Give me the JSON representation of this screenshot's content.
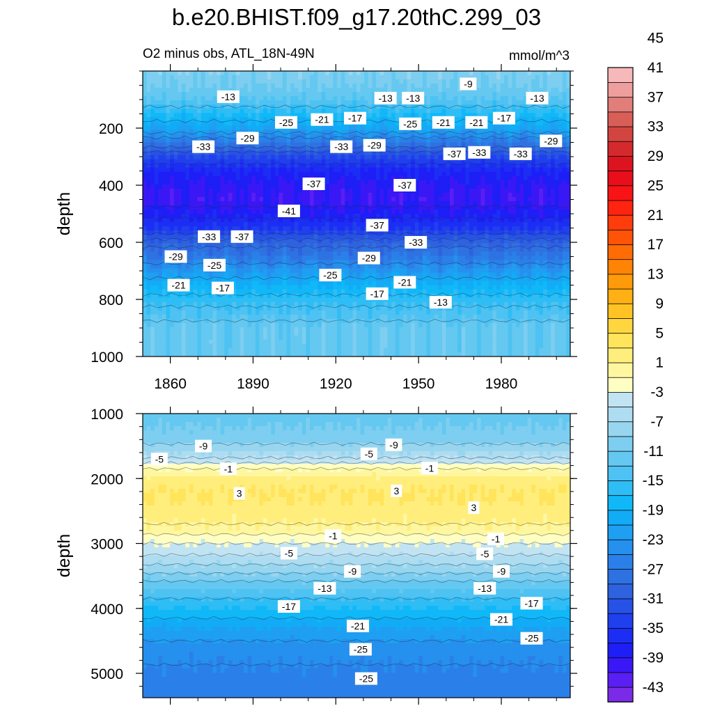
{
  "title": "b.e20.BHIST.f09_g17.20thC.299_03",
  "subtitle_left": "O2 minus obs, ATL_18N-49N",
  "subtitle_right": "mmol/m^3",
  "chart_data": {
    "type": "heatmap",
    "variable": "O2 minus obs",
    "region": "ATL_18N-49N",
    "units": "mmol/m^3",
    "xlabel": "",
    "x_range": [
      1850,
      2005
    ],
    "x_ticks": [
      "1860",
      "1890",
      "1920",
      "1950",
      "1980"
    ],
    "colorbar": {
      "levels": [
        -45,
        -43,
        -41,
        -39,
        -37,
        -35,
        -33,
        -31,
        -29,
        -27,
        -25,
        -23,
        -21,
        -19,
        -17,
        -15,
        -13,
        -11,
        -9,
        -7,
        -5,
        -3,
        -1,
        1,
        3,
        5,
        7,
        9,
        11,
        13,
        15,
        17,
        19,
        21,
        23,
        25,
        27,
        29,
        31,
        33,
        35,
        37,
        39,
        41,
        43,
        45
      ],
      "labels": [
        "45",
        "41",
        "37",
        "33",
        "29",
        "25",
        "21",
        "17",
        "13",
        "9",
        "5",
        "1",
        "-3",
        "-7",
        "-11",
        "-15",
        "-19",
        "-23",
        "-27",
        "-31",
        "-35",
        "-39",
        "-43"
      ],
      "colors": [
        "#7B2BE8",
        "#5A1FF3",
        "#3A18F5",
        "#1E1EF6",
        "#1C2EF4",
        "#2040EE",
        "#2752E6",
        "#2E62DF",
        "#2E72E2",
        "#2A80E8",
        "#2590EE",
        "#1E9FF2",
        "#12ABF6",
        "#10B8F8",
        "#2FBDF5",
        "#4EC2F2",
        "#64C8F0",
        "#7DCEF0",
        "#98D6F0",
        "#AEDCF0",
        "#C2E4F2",
        "#FFFFC4",
        "#FFF7A0",
        "#FFEE7C",
        "#FFE45C",
        "#FFD640",
        "#FFC424",
        "#FFB014",
        "#FF9A0A",
        "#FF8406",
        "#FF6C06",
        "#FF5408",
        "#FF3C0C",
        "#FF2410",
        "#F81416",
        "#E80E1A",
        "#DC1420",
        "#D42A2E",
        "#D24440",
        "#D85E58",
        "#E27E7A",
        "#EE9E9C",
        "#F6B8B8"
      ]
    },
    "panels": [
      {
        "name": "upper",
        "ylabel": "depth",
        "y_ticks": [
          "200",
          "400",
          "600",
          "800",
          "1000"
        ],
        "y_range": [
          0,
          1000
        ],
        "depth_profile": [
          {
            "depth": 10,
            "value": -10
          },
          {
            "depth": 50,
            "value": -11
          },
          {
            "depth": 100,
            "value": -13
          },
          {
            "depth": 150,
            "value": -17
          },
          {
            "depth": 200,
            "value": -21
          },
          {
            "depth": 250,
            "value": -27
          },
          {
            "depth": 300,
            "value": -33
          },
          {
            "depth": 350,
            "value": -37
          },
          {
            "depth": 400,
            "value": -39
          },
          {
            "depth": 450,
            "value": -40
          },
          {
            "depth": 500,
            "value": -38
          },
          {
            "depth": 550,
            "value": -35
          },
          {
            "depth": 600,
            "value": -30
          },
          {
            "depth": 650,
            "value": -27
          },
          {
            "depth": 700,
            "value": -23
          },
          {
            "depth": 750,
            "value": -19
          },
          {
            "depth": 800,
            "value": -16
          },
          {
            "depth": 850,
            "value": -14
          },
          {
            "depth": 900,
            "value": -12
          },
          {
            "depth": 1000,
            "value": -12
          }
        ],
        "contour_labels": [
          {
            "text": "-13",
            "year": 1881,
            "depth": 90
          },
          {
            "text": "-13",
            "year": 1938,
            "depth": 95
          },
          {
            "text": "-13",
            "year": 1948,
            "depth": 95
          },
          {
            "text": "-9",
            "year": 1968,
            "depth": 45
          },
          {
            "text": "-13",
            "year": 1993,
            "depth": 95
          },
          {
            "text": "-25",
            "year": 1902,
            "depth": 180
          },
          {
            "text": "-21",
            "year": 1915,
            "depth": 170
          },
          {
            "text": "-17",
            "year": 1927,
            "depth": 165
          },
          {
            "text": "-25",
            "year": 1947,
            "depth": 185
          },
          {
            "text": "-21",
            "year": 1959,
            "depth": 180
          },
          {
            "text": "-21",
            "year": 1971,
            "depth": 180
          },
          {
            "text": "-17",
            "year": 1981,
            "depth": 165
          },
          {
            "text": "-29",
            "year": 1888,
            "depth": 235
          },
          {
            "text": "-33",
            "year": 1872,
            "depth": 265
          },
          {
            "text": "-33",
            "year": 1922,
            "depth": 265
          },
          {
            "text": "-29",
            "year": 1934,
            "depth": 260
          },
          {
            "text": "-37",
            "year": 1963,
            "depth": 290
          },
          {
            "text": "-33",
            "year": 1972,
            "depth": 285
          },
          {
            "text": "-33",
            "year": 1987,
            "depth": 290
          },
          {
            "text": "-29",
            "year": 1998,
            "depth": 245
          },
          {
            "text": "-37",
            "year": 1912,
            "depth": 395
          },
          {
            "text": "-37",
            "year": 1945,
            "depth": 400
          },
          {
            "text": "-41",
            "year": 1903,
            "depth": 490
          },
          {
            "text": "-37",
            "year": 1935,
            "depth": 540
          },
          {
            "text": "-33",
            "year": 1874,
            "depth": 580
          },
          {
            "text": "-37",
            "year": 1886,
            "depth": 580
          },
          {
            "text": "-33",
            "year": 1949,
            "depth": 600
          },
          {
            "text": "-29",
            "year": 1862,
            "depth": 650
          },
          {
            "text": "-25",
            "year": 1876,
            "depth": 680
          },
          {
            "text": "-29",
            "year": 1932,
            "depth": 655
          },
          {
            "text": "-25",
            "year": 1918,
            "depth": 715
          },
          {
            "text": "-21",
            "year": 1945,
            "depth": 740
          },
          {
            "text": "-21",
            "year": 1863,
            "depth": 750
          },
          {
            "text": "-17",
            "year": 1879,
            "depth": 760
          },
          {
            "text": "-17",
            "year": 1935,
            "depth": 780
          },
          {
            "text": "-13",
            "year": 1958,
            "depth": 810
          }
        ]
      },
      {
        "name": "lower",
        "ylabel": "depth",
        "y_ticks": [
          "1000",
          "2000",
          "3000",
          "4000",
          "5000"
        ],
        "y_range": [
          1000,
          5375
        ],
        "depth_profile": [
          {
            "depth": 1000,
            "value": -12
          },
          {
            "depth": 1200,
            "value": -11
          },
          {
            "depth": 1400,
            "value": -10
          },
          {
            "depth": 1600,
            "value": -7
          },
          {
            "depth": 1800,
            "value": -2
          },
          {
            "depth": 1950,
            "value": 1
          },
          {
            "depth": 2150,
            "value": 3
          },
          {
            "depth": 2350,
            "value": 3
          },
          {
            "depth": 2600,
            "value": 1.5
          },
          {
            "depth": 2800,
            "value": 0.5
          },
          {
            "depth": 2900,
            "value": -2
          },
          {
            "depth": 3100,
            "value": -4
          },
          {
            "depth": 3400,
            "value": -8
          },
          {
            "depth": 3700,
            "value": -13
          },
          {
            "depth": 4000,
            "value": -17
          },
          {
            "depth": 4300,
            "value": -21
          },
          {
            "depth": 4600,
            "value": -24
          },
          {
            "depth": 5000,
            "value": -25.5
          },
          {
            "depth": 5375,
            "value": -26
          }
        ],
        "contour_labels": [
          {
            "text": "-9",
            "year": 1872,
            "depth": 1500
          },
          {
            "text": "-5",
            "year": 1856,
            "depth": 1700
          },
          {
            "text": "-1",
            "year": 1881,
            "depth": 1850
          },
          {
            "text": "-5",
            "year": 1932,
            "depth": 1620
          },
          {
            "text": "-9",
            "year": 1941,
            "depth": 1480
          },
          {
            "text": "-1",
            "year": 1954,
            "depth": 1840
          },
          {
            "text": "3",
            "year": 1885,
            "depth": 2230
          },
          {
            "text": "3",
            "year": 1942,
            "depth": 2190
          },
          {
            "text": "3",
            "year": 1970,
            "depth": 2450
          },
          {
            "text": "-1",
            "year": 1919,
            "depth": 2880
          },
          {
            "text": "-1",
            "year": 1978,
            "depth": 2930
          },
          {
            "text": "-5",
            "year": 1903,
            "depth": 3150
          },
          {
            "text": "-5",
            "year": 1974,
            "depth": 3160
          },
          {
            "text": "-9",
            "year": 1926,
            "depth": 3430
          },
          {
            "text": "-9",
            "year": 1980,
            "depth": 3430
          },
          {
            "text": "-13",
            "year": 1916,
            "depth": 3690
          },
          {
            "text": "-13",
            "year": 1974,
            "depth": 3690
          },
          {
            "text": "-17",
            "year": 1903,
            "depth": 3970
          },
          {
            "text": "-17",
            "year": 1991,
            "depth": 3920
          },
          {
            "text": "-21",
            "year": 1928,
            "depth": 4270
          },
          {
            "text": "-21",
            "year": 1980,
            "depth": 4170
          },
          {
            "text": "-25",
            "year": 1929,
            "depth": 4630
          },
          {
            "text": "-25",
            "year": 1991,
            "depth": 4460
          },
          {
            "text": "-25",
            "year": 1931,
            "depth": 5080
          }
        ]
      }
    ]
  }
}
